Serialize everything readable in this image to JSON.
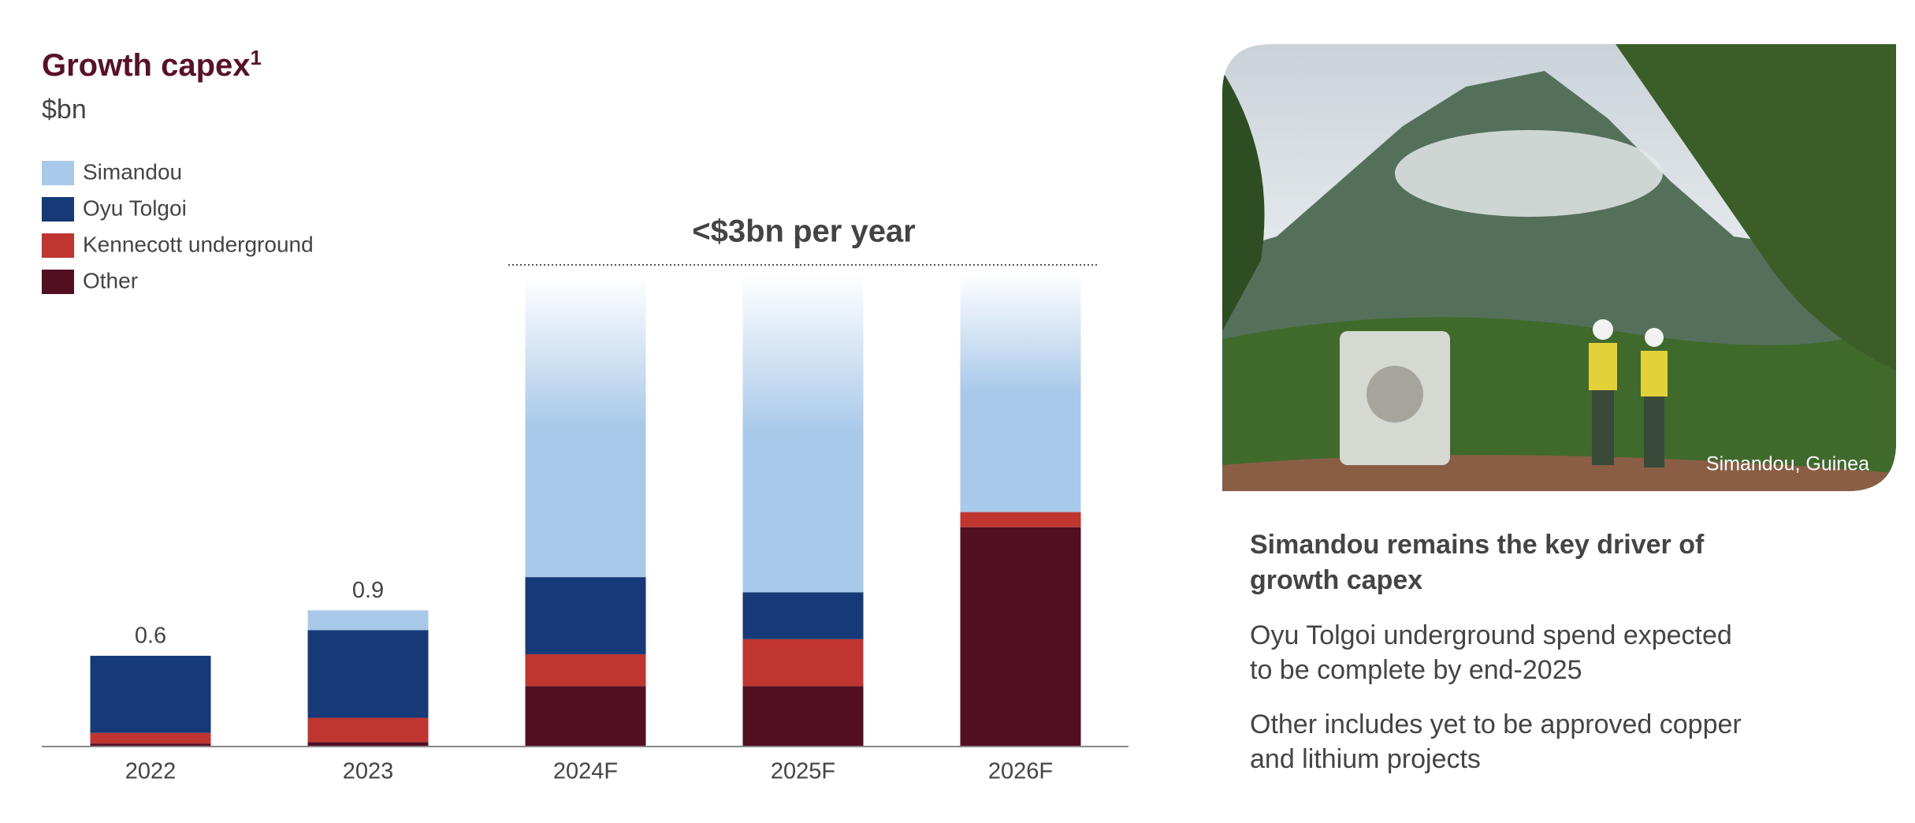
{
  "chart_data": {
    "type": "stacked_bar",
    "title": "Growth capex",
    "title_footnote": "1",
    "subtitle": "$bn",
    "categories": [
      "2022",
      "2023",
      "2024F",
      "2025F",
      "2026F"
    ],
    "series": [
      {
        "name": "Other",
        "color": "#520f22",
        "values": [
          0.02,
          0.03,
          0.4,
          0.4,
          1.45
        ]
      },
      {
        "name": "Kennecott underground",
        "color": "#c0352f",
        "values": [
          0.07,
          0.16,
          0.21,
          0.31,
          0.1
        ]
      },
      {
        "name": "Oyu Tolgoi",
        "color": "#163a78",
        "values": [
          0.51,
          0.58,
          0.51,
          0.31,
          0
        ]
      },
      {
        "name": "Simandou",
        "color": "#a9c9ea",
        "values": [
          0,
          0.13,
          1.98,
          2.1,
          1.58
        ]
      }
    ],
    "totals": [
      0.6,
      0.9,
      null,
      null,
      null
    ],
    "annotation": "<$3bn per year",
    "ylim": [
      0,
      3.2
    ]
  },
  "side_panel": {
    "photo_caption": "Simandou, Guinea",
    "heading": [
      "Simandou remains the key driver of",
      "growth capex"
    ],
    "paragraphs": [
      [
        "Oyu Tolgoi underground spend expected",
        "to be complete by end-2025"
      ],
      [
        "Other includes yet to be approved copper",
        "and lithium projects"
      ]
    ]
  }
}
